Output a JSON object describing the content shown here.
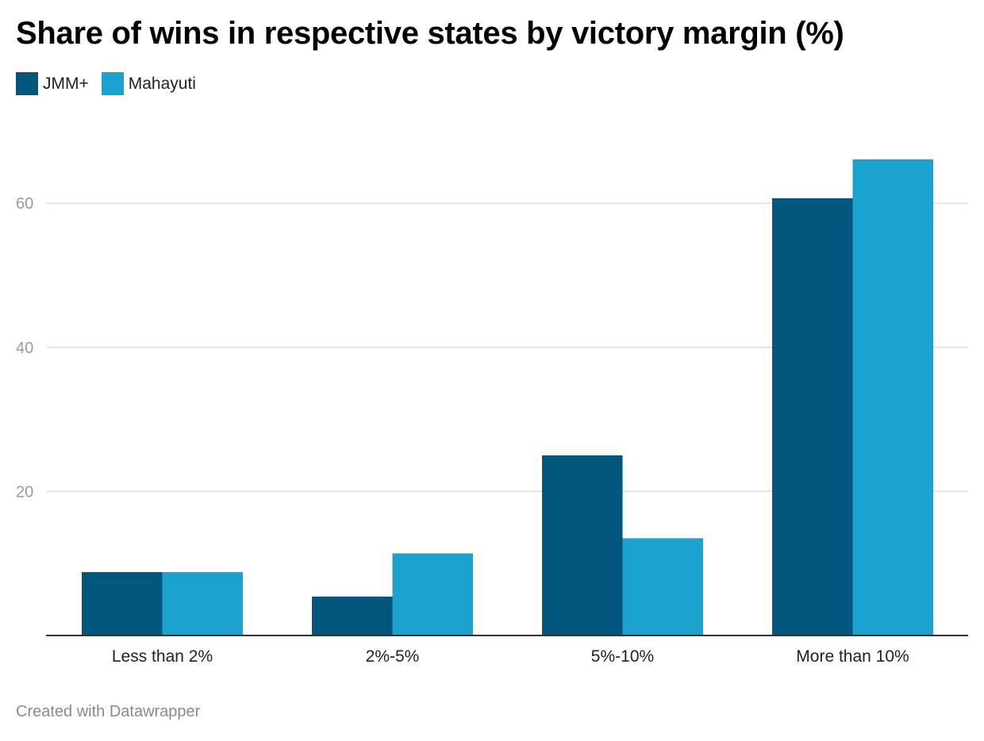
{
  "chart_data": {
    "type": "bar",
    "title": "Share of wins in respective states by victory margin (%)",
    "categories": [
      "Less than 2%",
      "2%-5%",
      "5%-10%",
      "More than 10%"
    ],
    "series": [
      {
        "name": "JMM+",
        "color": "#02557c",
        "values": [
          8.8,
          5.4,
          25.0,
          60.7
        ]
      },
      {
        "name": "Mahayuti",
        "color": "#1aa2d0",
        "values": [
          8.8,
          11.4,
          13.5,
          66.1
        ]
      }
    ],
    "yticks": [
      20,
      40,
      60
    ],
    "ylim": [
      0,
      70
    ],
    "grid": true,
    "legend": "top-left",
    "xlabel": "",
    "ylabel": ""
  },
  "footer": "Created with Datawrapper",
  "colors": {
    "grid": "#dddddd",
    "axis": "#333333",
    "tick_text": "#9a9a9a"
  }
}
